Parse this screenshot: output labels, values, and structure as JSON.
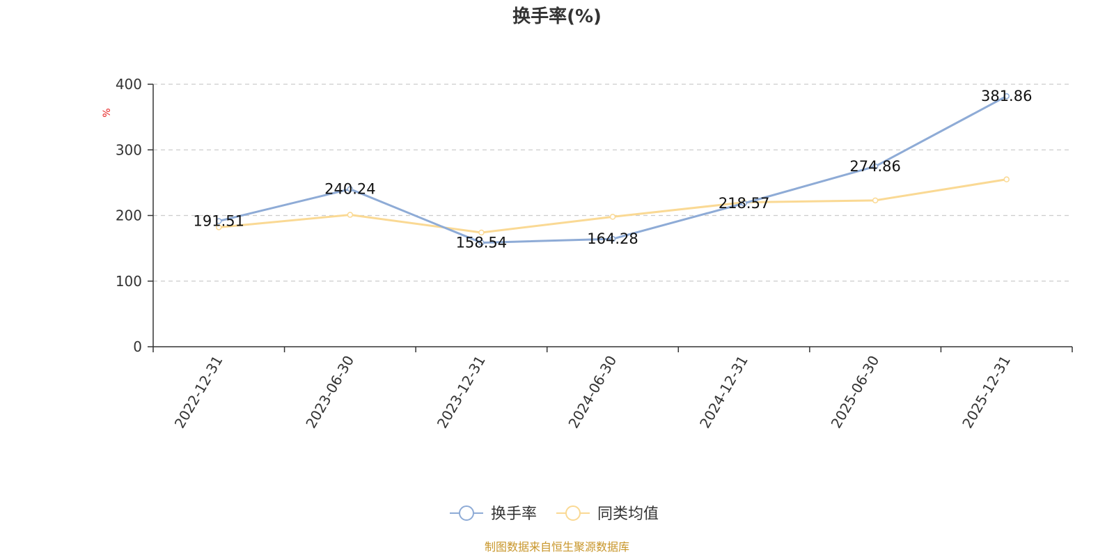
{
  "chart_data": {
    "type": "line",
    "title": "换手率(%)",
    "ylabel": "%",
    "xlabel": "",
    "ylim": [
      0,
      400
    ],
    "yticks": [
      0,
      100,
      200,
      300,
      400
    ],
    "grid": true,
    "legend_position": "bottom-center",
    "categories": [
      "2022-12-31",
      "2023-06-30",
      "2023-12-31",
      "2024-06-30",
      "2024-12-31",
      "2025-06-30",
      "2025-12-31"
    ],
    "series": [
      {
        "name": "换手率",
        "color": "#8eabd6",
        "values": [
          191.51,
          240.24,
          158.54,
          164.28,
          218.57,
          274.86,
          381.86
        ],
        "labels": [
          "191.51",
          "240.24",
          "158.54",
          "164.28",
          "218.57",
          "274.86",
          "381.86"
        ]
      },
      {
        "name": "同类均值",
        "color": "#fad994",
        "values": [
          182,
          201,
          174,
          198,
          220,
          223,
          255
        ]
      }
    ],
    "source": "制图数据来自恒生聚源数据库"
  }
}
